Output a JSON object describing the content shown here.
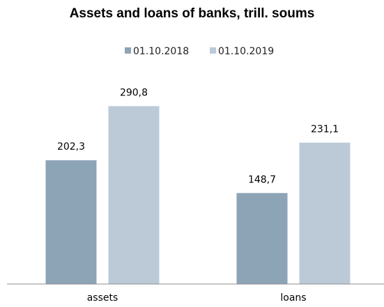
{
  "chart_data": {
    "type": "bar",
    "title": "Assets and loans of banks, trill. soums",
    "categories": [
      "assets",
      "loans"
    ],
    "series": [
      {
        "name": "01.10.2018",
        "values": [
          202.3,
          148.7
        ],
        "labels": [
          "202,3",
          "148,7"
        ]
      },
      {
        "name": "01.10.2019",
        "values": [
          290.8,
          231.1
        ],
        "labels": [
          "290,8",
          "231,1"
        ]
      }
    ],
    "ylim": [
      0,
      330
    ],
    "grid": false,
    "legend": "top",
    "colors": [
      "#8da3b6",
      "#bccad8"
    ]
  }
}
